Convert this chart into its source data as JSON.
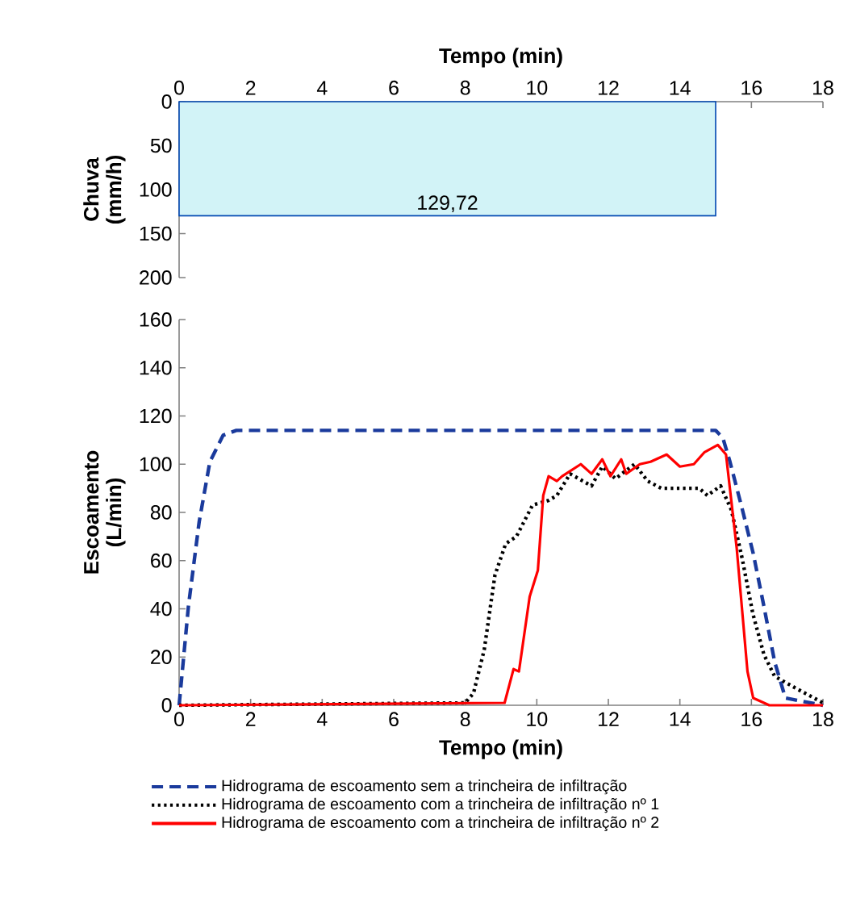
{
  "chart_data": [
    {
      "type": "area",
      "xlabel": "Tempo (min)",
      "ylabel": "Chuva (mm/h)",
      "xlim": [
        0,
        18
      ],
      "xticks": [
        0,
        2,
        4,
        6,
        8,
        10,
        12,
        14,
        16,
        18
      ],
      "ylim": [
        200,
        0
      ],
      "yticks": [
        0,
        50,
        100,
        150,
        200
      ],
      "series": [
        {
          "x": [
            0,
            15
          ],
          "values": [
            129.72,
            129.72
          ],
          "color": "#d2f3f7"
        }
      ],
      "annotations": [
        {
          "text": "129,72",
          "x": 7.5,
          "y": 129.72
        }
      ],
      "grid": false,
      "legend": false
    },
    {
      "type": "line",
      "xlabel": "Tempo (min)",
      "ylabel": "Escoamento (L/min)",
      "xlim": [
        0,
        18
      ],
      "xticks": [
        0,
        2,
        4,
        6,
        8,
        10,
        12,
        14,
        16,
        18
      ],
      "ylim": [
        0,
        160
      ],
      "yticks": [
        0,
        20,
        40,
        60,
        80,
        100,
        120,
        140,
        160
      ],
      "grid": false,
      "legend": "bottom",
      "series": [
        {
          "name": "Hidrograma de escoamento sem a trincheira de infiltração",
          "color": "#1a3a9c",
          "line_style": "dashed",
          "x": [
            0,
            0.26,
            0.56,
            0.86,
            1.23,
            1.6,
            15.0,
            15.2,
            15.4,
            15.75,
            16.05,
            16.35,
            16.65,
            16.95,
            18
          ],
          "values": [
            0,
            41,
            76,
            101,
            112,
            114,
            114,
            111,
            101,
            81,
            63,
            41,
            18,
            3,
            0
          ]
        },
        {
          "name": "Hidrograma de escoamento com a trincheira de infiltração nº 1",
          "color": "#000000",
          "line_style": "dotted",
          "x": [
            0,
            8.0,
            8.23,
            8.53,
            8.83,
            9.13,
            9.43,
            9.88,
            10.33,
            10.56,
            10.93,
            11.53,
            11.83,
            12.2,
            12.73,
            13.1,
            13.48,
            14.54,
            14.77,
            15.14,
            15.44,
            15.74,
            16.04,
            16.35,
            16.65,
            17.25,
            18
          ],
          "values": [
            0,
            1,
            5,
            23,
            54,
            67,
            70,
            83,
            85,
            87,
            96,
            91,
            99,
            94,
            100,
            93,
            90,
            90,
            87,
            91,
            81,
            61,
            38,
            21,
            12,
            7,
            1
          ]
        },
        {
          "name": "Hidrograma de escoamento com a trincheira de infiltração nº 2",
          "color": "#ff0000",
          "line_style": "solid",
          "x": [
            0,
            9.1,
            9.35,
            9.5,
            9.8,
            10.03,
            10.18,
            10.33,
            10.56,
            10.71,
            11.23,
            11.53,
            11.83,
            12.06,
            12.36,
            12.5,
            12.88,
            13.18,
            13.63,
            14.0,
            14.39,
            14.69,
            15.06,
            15.29,
            15.59,
            15.89,
            16.05,
            16.5,
            18
          ],
          "values": [
            0,
            1,
            15,
            14,
            45,
            56,
            87,
            95,
            93,
            95,
            100,
            96,
            102,
            95,
            102,
            96,
            100,
            101,
            104,
            99,
            100,
            105,
            108,
            104,
            65,
            14,
            3,
            0,
            0
          ]
        }
      ]
    }
  ]
}
